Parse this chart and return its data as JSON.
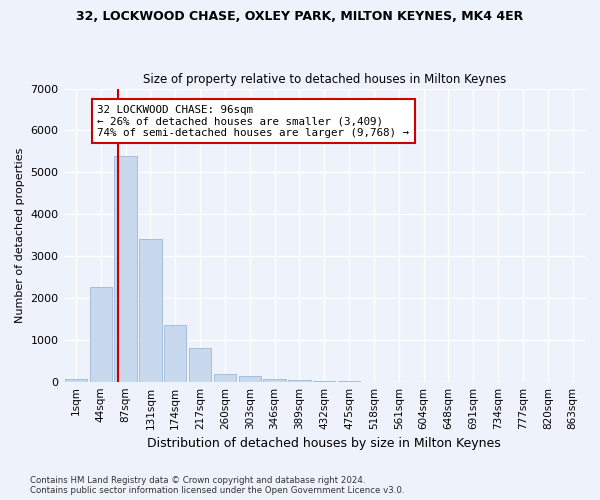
{
  "title1": "32, LOCKWOOD CHASE, OXLEY PARK, MILTON KEYNES, MK4 4ER",
  "title2": "Size of property relative to detached houses in Milton Keynes",
  "xlabel": "Distribution of detached houses by size in Milton Keynes",
  "ylabel": "Number of detached properties",
  "bar_labels": [
    "1sqm",
    "44sqm",
    "87sqm",
    "131sqm",
    "174sqm",
    "217sqm",
    "260sqm",
    "303sqm",
    "346sqm",
    "389sqm",
    "432sqm",
    "475sqm",
    "518sqm",
    "561sqm",
    "604sqm",
    "648sqm",
    "691sqm",
    "734sqm",
    "777sqm",
    "820sqm",
    "863sqm"
  ],
  "bar_heights": [
    55,
    2250,
    5400,
    3400,
    1350,
    800,
    175,
    125,
    75,
    50,
    10,
    5,
    2,
    1,
    0,
    0,
    0,
    0,
    0,
    0,
    0
  ],
  "bar_color": "#c8d9ee",
  "bar_edge_color": "#9db8d8",
  "property_label": "32 LOCKWOOD CHASE: 96sqm",
  "annotation_line1": "← 26% of detached houses are smaller (3,409)",
  "annotation_line2": "74% of semi-detached houses are larger (9,768) →",
  "vline_color": "#cc0000",
  "ylim": [
    0,
    7000
  ],
  "yticks": [
    0,
    1000,
    2000,
    3000,
    4000,
    5000,
    6000,
    7000
  ],
  "footnote1": "Contains HM Land Registry data © Crown copyright and database right 2024.",
  "footnote2": "Contains public sector information licensed under the Open Government Licence v3.0.",
  "background_color": "#eef2fa",
  "grid_color": "#ffffff"
}
